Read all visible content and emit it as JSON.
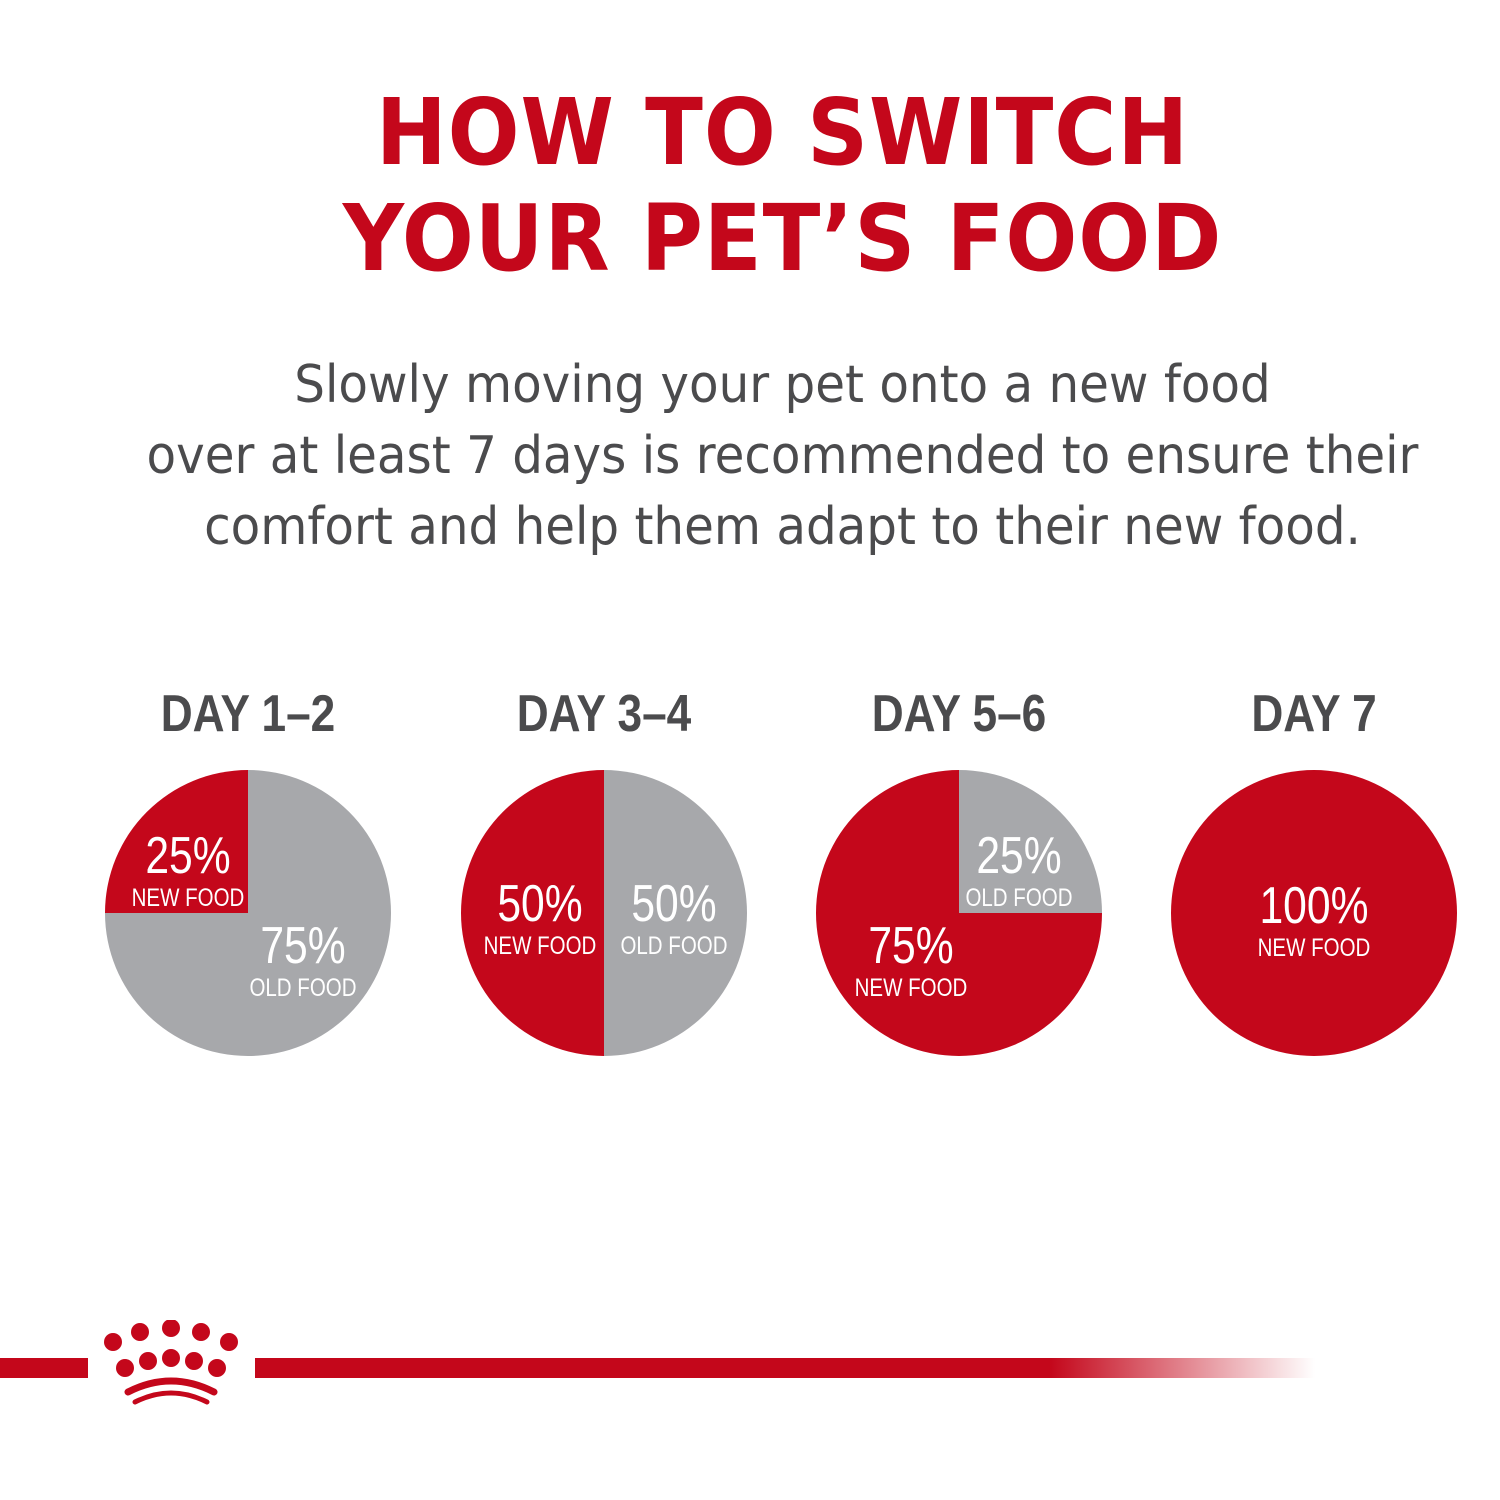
{
  "title_lines": [
    "HOW TO SWITCH",
    "YOUR PET’S FOOD"
  ],
  "subtitle_lines": [
    "Slowly moving your pet onto a new food",
    "over at least 7 days is recommended to ensure their",
    "comfort and help them adapt to their new food."
  ],
  "colors": {
    "new_food": "#c4071b",
    "old_food": "#a7a8ab",
    "title": "#c4071b",
    "text": "#4b4b4d"
  },
  "logo": "royal-canin-crown",
  "chart_data": {
    "type": "pie",
    "charts": [
      {
        "title": "DAY 1–2",
        "slices": [
          {
            "label": "NEW FOOD",
            "value": 25,
            "value_label": "25%"
          },
          {
            "label": "OLD FOOD",
            "value": 75,
            "value_label": "75%"
          }
        ]
      },
      {
        "title": "DAY 3–4",
        "slices": [
          {
            "label": "NEW FOOD",
            "value": 50,
            "value_label": "50%"
          },
          {
            "label": "OLD FOOD",
            "value": 50,
            "value_label": "50%"
          }
        ]
      },
      {
        "title": "DAY 5–6",
        "slices": [
          {
            "label": "NEW FOOD",
            "value": 75,
            "value_label": "75%"
          },
          {
            "label": "OLD FOOD",
            "value": 25,
            "value_label": "25%"
          }
        ]
      },
      {
        "title": "DAY 7",
        "slices": [
          {
            "label": "NEW FOOD",
            "value": 100,
            "value_label": "100%"
          }
        ]
      }
    ]
  }
}
